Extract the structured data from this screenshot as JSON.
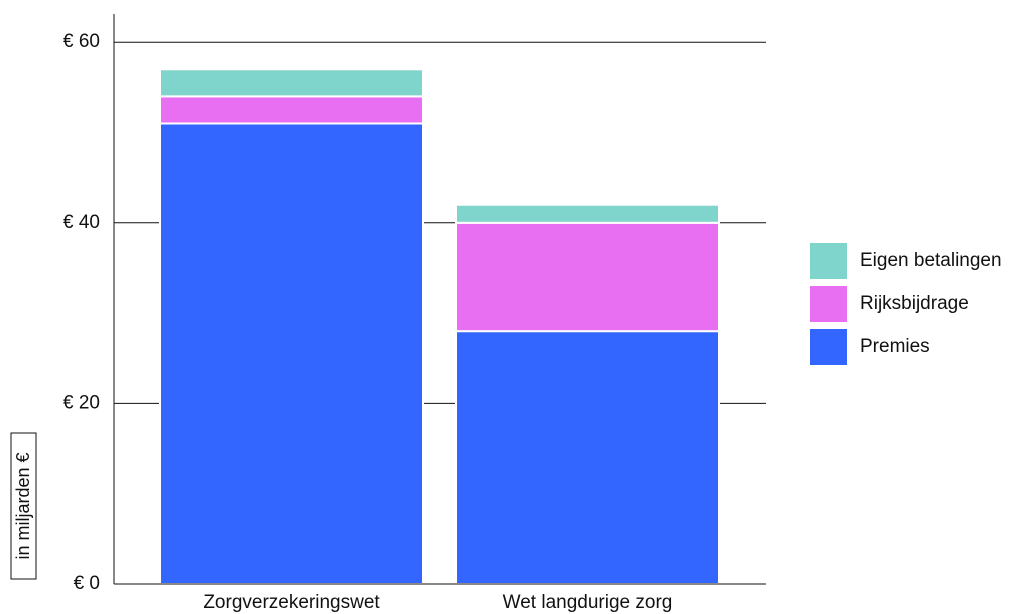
{
  "chart_data": {
    "type": "bar",
    "stacked": true,
    "categories": [
      "Zorgverzekeringswet",
      "Wet langdurige zorg"
    ],
    "series": [
      {
        "name": "Premies",
        "values": [
          51,
          28
        ],
        "color": "#3366ff"
      },
      {
        "name": "Rijksbijdrage",
        "values": [
          3,
          12
        ],
        "color": "#e86ef2"
      },
      {
        "name": "Eigen betalingen",
        "values": [
          3,
          2
        ],
        "color": "#7fd4cb"
      }
    ],
    "ylabel": "in miljarden €",
    "ylim": [
      0,
      63
    ],
    "yticks": [
      0,
      20,
      40,
      60
    ],
    "ytick_labels": [
      "€ 0",
      "€ 20",
      "€ 40",
      "€ 60"
    ],
    "grid": true,
    "legend_position": "right"
  }
}
